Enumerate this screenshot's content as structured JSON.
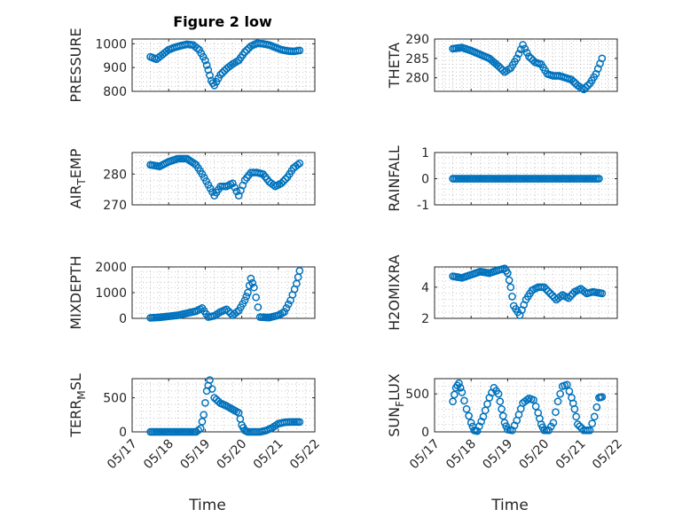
{
  "figure_title": "Figure 2 low",
  "marker_color": "#0072BD",
  "chart_data": [
    {
      "type": "scatter",
      "title": "Figure 2 low",
      "xlabel": "",
      "ylabel": "PRESSURE",
      "ylim": [
        800,
        1020
      ],
      "yticks": [
        800,
        900,
        1000
      ],
      "xlim": [
        "2017-05-17",
        "2017-05-22"
      ],
      "xticks": [
        "05/17",
        "05/18",
        "05/19",
        "05/20",
        "05/21",
        "05/22"
      ],
      "grid": true,
      "x": [
        "2017-05-17 12:00",
        "2017-05-17 16:00",
        "2017-05-17 20:00",
        "2017-05-18 00:00",
        "2017-05-18 04:00",
        "2017-05-18 08:00",
        "2017-05-18 12:00",
        "2017-05-18 16:00",
        "2017-05-18 20:00",
        "2017-05-19 00:00",
        "2017-05-19 02:00",
        "2017-05-19 04:00",
        "2017-05-19 06:00",
        "2017-05-19 10:00",
        "2017-05-19 14:00",
        "2017-05-19 18:00",
        "2017-05-19 22:00",
        "2017-05-20 02:00",
        "2017-05-20 06:00",
        "2017-05-20 10:00",
        "2017-05-20 14:00",
        "2017-05-20 18:00",
        "2017-05-20 22:00",
        "2017-05-21 02:00",
        "2017-05-21 06:00",
        "2017-05-21 10:00",
        "2017-05-21 14:00"
      ],
      "y": [
        945,
        935,
        955,
        975,
        985,
        992,
        998,
        995,
        975,
        930,
        890,
        845,
        825,
        870,
        895,
        915,
        930,
        965,
        990,
        1002,
        1000,
        995,
        985,
        975,
        970,
        968,
        972
      ]
    },
    {
      "type": "scatter",
      "xlabel": "",
      "ylabel": "THETA",
      "ylim": [
        276.5,
        290
      ],
      "yticks": [
        280,
        285,
        290
      ],
      "xlim": [
        "2017-05-17",
        "2017-05-22"
      ],
      "xticks": [
        "05/17",
        "05/18",
        "05/19",
        "05/20",
        "05/21",
        "05/22"
      ],
      "grid": true,
      "x": [
        "2017-05-17 12:00",
        "2017-05-17 18:00",
        "2017-05-18 00:00",
        "2017-05-18 06:00",
        "2017-05-18 12:00",
        "2017-05-18 18:00",
        "2017-05-18 22:00",
        "2017-05-19 02:00",
        "2017-05-19 06:00",
        "2017-05-19 10:00",
        "2017-05-19 14:00",
        "2017-05-19 18:00",
        "2017-05-19 22:00",
        "2017-05-20 02:00",
        "2017-05-20 06:00",
        "2017-05-20 10:00",
        "2017-05-20 14:00",
        "2017-05-20 18:00",
        "2017-05-20 22:00",
        "2017-05-21 02:00",
        "2017-05-21 06:00",
        "2017-05-21 10:00",
        "2017-05-21 14:00"
      ],
      "y": [
        287.5,
        287.8,
        287,
        286,
        285,
        283,
        281.5,
        282.5,
        285,
        288.5,
        285.5,
        284,
        283.5,
        281,
        280.5,
        280.5,
        280,
        279.5,
        278,
        277,
        278.5,
        281,
        285
      ]
    },
    {
      "type": "scatter",
      "xlabel": "",
      "ylabel": "AIR_TEMP",
      "ylim": [
        270,
        287
      ],
      "yticks": [
        270,
        280
      ],
      "xlim": [
        "2017-05-17",
        "2017-05-22"
      ],
      "xticks": [
        "05/17",
        "05/18",
        "05/19",
        "05/20",
        "05/21",
        "05/22"
      ],
      "grid": true,
      "x": [
        "2017-05-17 12:00",
        "2017-05-17 18:00",
        "2017-05-18 00:00",
        "2017-05-18 06:00",
        "2017-05-18 12:00",
        "2017-05-18 18:00",
        "2017-05-18 22:00",
        "2017-05-19 02:00",
        "2017-05-19 06:00",
        "2017-05-19 10:00",
        "2017-05-19 14:00",
        "2017-05-19 18:00",
        "2017-05-19 22:00",
        "2017-05-20 02:00",
        "2017-05-20 06:00",
        "2017-05-20 10:00",
        "2017-05-20 14:00",
        "2017-05-20 18:00",
        "2017-05-20 22:00",
        "2017-05-21 02:00",
        "2017-05-21 06:00",
        "2017-05-21 10:00",
        "2017-05-21 14:00"
      ],
      "y": [
        283,
        282.5,
        284,
        285,
        285,
        283,
        280,
        276.5,
        273,
        276,
        276,
        277,
        273,
        278,
        280.5,
        280.5,
        280,
        277.5,
        276,
        277,
        279,
        282,
        283.5
      ]
    },
    {
      "type": "scatter",
      "xlabel": "",
      "ylabel": "RAINFALL",
      "ylim": [
        -1,
        1
      ],
      "yticks": [
        -1,
        0,
        1
      ],
      "xlim": [
        "2017-05-17",
        "2017-05-22"
      ],
      "xticks": [
        "05/17",
        "05/18",
        "05/19",
        "05/20",
        "05/21",
        "05/22"
      ],
      "grid": true,
      "x": [
        "2017-05-17 12:00",
        "2017-05-17 18:00",
        "2017-05-18 00:00",
        "2017-05-18 06:00",
        "2017-05-18 12:00",
        "2017-05-18 18:00",
        "2017-05-19 00:00",
        "2017-05-19 06:00",
        "2017-05-19 12:00",
        "2017-05-19 18:00",
        "2017-05-20 00:00",
        "2017-05-20 06:00",
        "2017-05-20 12:00",
        "2017-05-20 18:00",
        "2017-05-21 00:00",
        "2017-05-21 06:00",
        "2017-05-21 12:00"
      ],
      "y": [
        0,
        0,
        0,
        0,
        0,
        0,
        0,
        0,
        0,
        0,
        0,
        0,
        0,
        0,
        0,
        0,
        0
      ]
    },
    {
      "type": "scatter",
      "xlabel": "",
      "ylabel": "MIXDEPTH",
      "ylim": [
        0,
        2000
      ],
      "yticks": [
        0,
        1000,
        2000
      ],
      "xlim": [
        "2017-05-17",
        "2017-05-22"
      ],
      "xticks": [
        "05/17",
        "05/18",
        "05/19",
        "05/20",
        "05/21",
        "05/22"
      ],
      "grid": true,
      "x": [
        "2017-05-17 12:00",
        "2017-05-17 18:00",
        "2017-05-18 00:00",
        "2017-05-18 06:00",
        "2017-05-18 12:00",
        "2017-05-18 18:00",
        "2017-05-18 22:00",
        "2017-05-19 02:00",
        "2017-05-19 06:00",
        "2017-05-19 10:00",
        "2017-05-19 14:00",
        "2017-05-19 18:00",
        "2017-05-19 22:00",
        "2017-05-20 02:00",
        "2017-05-20 04:00",
        "2017-05-20 06:00",
        "2017-05-20 08:00",
        "2017-05-20 12:00",
        "2017-05-20 18:00",
        "2017-05-21 00:00",
        "2017-05-21 04:00",
        "2017-05-21 08:00",
        "2017-05-21 12:00",
        "2017-05-21 14:00"
      ],
      "y": [
        20,
        40,
        80,
        120,
        200,
        280,
        400,
        50,
        100,
        250,
        350,
        120,
        300,
        700,
        1000,
        1550,
        1200,
        50,
        30,
        120,
        250,
        700,
        1350,
        1850
      ]
    },
    {
      "type": "scatter",
      "xlabel": "",
      "ylabel": "H2OMIXRA",
      "ylim": [
        2,
        5.3
      ],
      "yticks": [
        2,
        4
      ],
      "xlim": [
        "2017-05-17",
        "2017-05-22"
      ],
      "xticks": [
        "05/17",
        "05/18",
        "05/19",
        "05/20",
        "05/21",
        "05/22"
      ],
      "grid": true,
      "x": [
        "2017-05-17 12:00",
        "2017-05-17 18:00",
        "2017-05-18 00:00",
        "2017-05-18 06:00",
        "2017-05-18 12:00",
        "2017-05-18 18:00",
        "2017-05-18 22:00",
        "2017-05-19 00:00",
        "2017-05-19 02:00",
        "2017-05-19 04:00",
        "2017-05-19 08:00",
        "2017-05-19 12:00",
        "2017-05-19 16:00",
        "2017-05-19 20:00",
        "2017-05-20 00:00",
        "2017-05-20 04:00",
        "2017-05-20 08:00",
        "2017-05-20 12:00",
        "2017-05-20 16:00",
        "2017-05-20 20:00",
        "2017-05-21 00:00",
        "2017-05-21 04:00",
        "2017-05-21 08:00",
        "2017-05-21 14:00"
      ],
      "y": [
        4.7,
        4.6,
        4.8,
        5.0,
        4.9,
        5.1,
        5.2,
        4.9,
        4.0,
        2.8,
        2.2,
        3.2,
        3.8,
        4.0,
        4.0,
        3.6,
        3.2,
        3.5,
        3.3,
        3.7,
        3.9,
        3.6,
        3.7,
        3.6
      ]
    },
    {
      "type": "scatter",
      "xlabel": "Time",
      "ylabel": "TERR_MSL",
      "ylim": [
        0,
        780
      ],
      "yticks": [
        0,
        500
      ],
      "xlim": [
        "2017-05-17",
        "2017-05-22"
      ],
      "xticks": [
        "05/17",
        "05/18",
        "05/19",
        "05/20",
        "05/21",
        "05/22"
      ],
      "grid": true,
      "x": [
        "2017-05-17 12:00",
        "2017-05-17 18:00",
        "2017-05-18 00:00",
        "2017-05-18 06:00",
        "2017-05-18 12:00",
        "2017-05-18 18:00",
        "2017-05-18 21:00",
        "2017-05-18 23:00",
        "2017-05-19 01:00",
        "2017-05-19 03:00",
        "2017-05-19 06:00",
        "2017-05-19 10:00",
        "2017-05-19 14:00",
        "2017-05-19 18:00",
        "2017-05-19 22:00",
        "2017-05-20 00:00",
        "2017-05-20 02:00",
        "2017-05-20 04:00",
        "2017-05-20 08:00",
        "2017-05-20 12:00",
        "2017-05-20 16:00",
        "2017-05-20 20:00",
        "2017-05-21 00:00",
        "2017-05-21 04:00",
        "2017-05-21 08:00",
        "2017-05-21 14:00"
      ],
      "y": [
        0,
        0,
        0,
        0,
        0,
        0,
        50,
        250,
        600,
        760,
        500,
        420,
        380,
        330,
        280,
        100,
        20,
        0,
        0,
        0,
        20,
        60,
        120,
        140,
        145,
        145
      ]
    },
    {
      "type": "scatter",
      "xlabel": "Time",
      "ylabel": "SUN_FLUX",
      "ylim": [
        0,
        700
      ],
      "yticks": [
        0,
        500
      ],
      "xlim": [
        "2017-05-17",
        "2017-05-22"
      ],
      "xticks": [
        "05/17",
        "05/18",
        "05/19",
        "05/20",
        "05/21",
        "05/22"
      ],
      "grid": true,
      "x": [
        "2017-05-17 12:00",
        "2017-05-17 14:00",
        "2017-05-17 16:00",
        "2017-05-17 18:00",
        "2017-05-17 21:00",
        "2017-05-18 00:00",
        "2017-05-18 02:00",
        "2017-05-18 04:00",
        "2017-05-18 08:00",
        "2017-05-18 12:00",
        "2017-05-18 15:00",
        "2017-05-18 18:00",
        "2017-05-18 20:00",
        "2017-05-18 22:00",
        "2017-05-19 00:00",
        "2017-05-19 03:00",
        "2017-05-19 06:00",
        "2017-05-19 10:00",
        "2017-05-19 14:00",
        "2017-05-19 17:00",
        "2017-05-19 20:00",
        "2017-05-19 22:00",
        "2017-05-20 00:00",
        "2017-05-20 03:00",
        "2017-05-20 06:00",
        "2017-05-20 09:00",
        "2017-05-20 12:00",
        "2017-05-20 15:00",
        "2017-05-20 18:00",
        "2017-05-20 20:00",
        "2017-05-20 22:00",
        "2017-05-21 02:00",
        "2017-05-21 06:00",
        "2017-05-21 09:00",
        "2017-05-21 12:00",
        "2017-05-21 14:00"
      ],
      "y": [
        400,
        580,
        640,
        520,
        300,
        120,
        20,
        10,
        200,
        450,
        580,
        500,
        300,
        120,
        30,
        20,
        150,
        380,
        440,
        420,
        250,
        100,
        20,
        20,
        120,
        400,
        600,
        620,
        450,
        300,
        100,
        20,
        20,
        200,
        450,
        460
      ]
    }
  ]
}
